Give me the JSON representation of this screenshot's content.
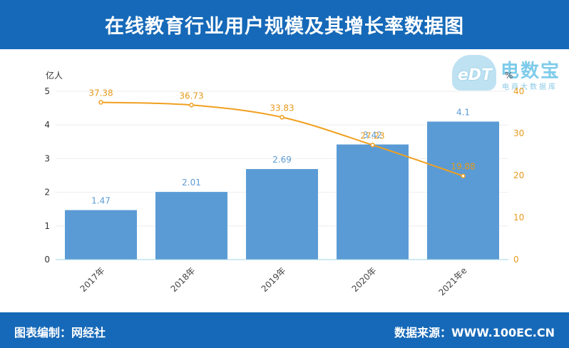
{
  "header": {
    "title": "在线教育行业用户规模及其增长率数据图"
  },
  "footer": {
    "left": "图表编制：网经社",
    "right": "数据来源：WWW.100EC.CN"
  },
  "logo": {
    "name": "电数宝",
    "sub": "电商大数据库",
    "abbr": "eDT"
  },
  "colors": {
    "bar": "#5b9bd5",
    "line": "#f0a020",
    "label": "#5b9bd5",
    "header": "#1669b8",
    "line_label": "#e69a1c"
  },
  "chart_data": {
    "type": "bar",
    "categories": [
      "2017年",
      "2018年",
      "2019年",
      "2020年",
      "2021年e"
    ],
    "series": [
      {
        "type": "bar",
        "values": [
          1.47,
          2.01,
          2.69,
          3.42,
          4.1
        ],
        "labels": [
          "1.47",
          "2.01",
          "2.69",
          "3.42",
          "4.1"
        ],
        "axis": "left"
      },
      {
        "type": "line",
        "values": [
          37.38,
          36.73,
          33.83,
          27.23,
          19.88
        ],
        "labels": [
          "37.38",
          "36.73",
          "33.83",
          "27.23",
          "19.88"
        ],
        "axis": "right"
      }
    ],
    "ylabel": "亿人",
    "y2label": "%",
    "ylim": [
      0,
      5
    ],
    "y2lim": [
      0,
      40
    ],
    "yticks": [
      "0",
      "1",
      "2",
      "3",
      "4",
      "5"
    ],
    "y2ticks": [
      "0",
      "10",
      "20",
      "30",
      "40"
    ],
    "grid": true
  }
}
